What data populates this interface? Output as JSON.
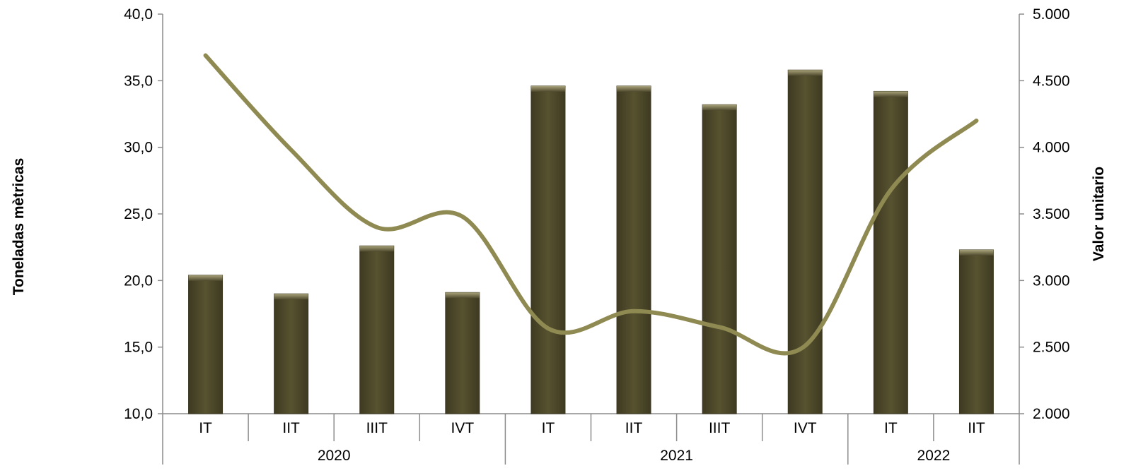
{
  "chart_data": {
    "type": "bar",
    "title": "",
    "categories": [
      "IT",
      "IIT",
      "IIIT",
      "IVT",
      "IT",
      "IIT",
      "IIIT",
      "IVT",
      "IT",
      "IIT"
    ],
    "groups": [
      {
        "label": "2020",
        "count": 4
      },
      {
        "label": "2021",
        "count": 4
      },
      {
        "label": "2022",
        "count": 2
      }
    ],
    "series": [
      {
        "type": "bar",
        "axis": "left",
        "values": [
          20.4,
          19.0,
          22.6,
          19.1,
          34.6,
          34.6,
          33.2,
          35.8,
          34.2,
          22.3
        ],
        "color": "#4f4a2e"
      },
      {
        "type": "line",
        "axis": "right",
        "values": [
          4690,
          3980,
          3400,
          3480,
          2640,
          2770,
          2650,
          2510,
          3680,
          4200
        ],
        "color": "#8f8a52"
      }
    ],
    "ylabel": "Toneladas mètricas",
    "y2label": "Valor unitario",
    "ylim": [
      10,
      40
    ],
    "y2lim": [
      2000,
      5000
    ],
    "yticks": [
      "10,0",
      "15,0",
      "20,0",
      "25,0",
      "30,0",
      "35,0",
      "40,0"
    ],
    "y2ticks": [
      "2.000",
      "2.500",
      "3.000",
      "3.500",
      "4.000",
      "4.500",
      "5.000"
    ],
    "grid": false,
    "legend": "none"
  }
}
